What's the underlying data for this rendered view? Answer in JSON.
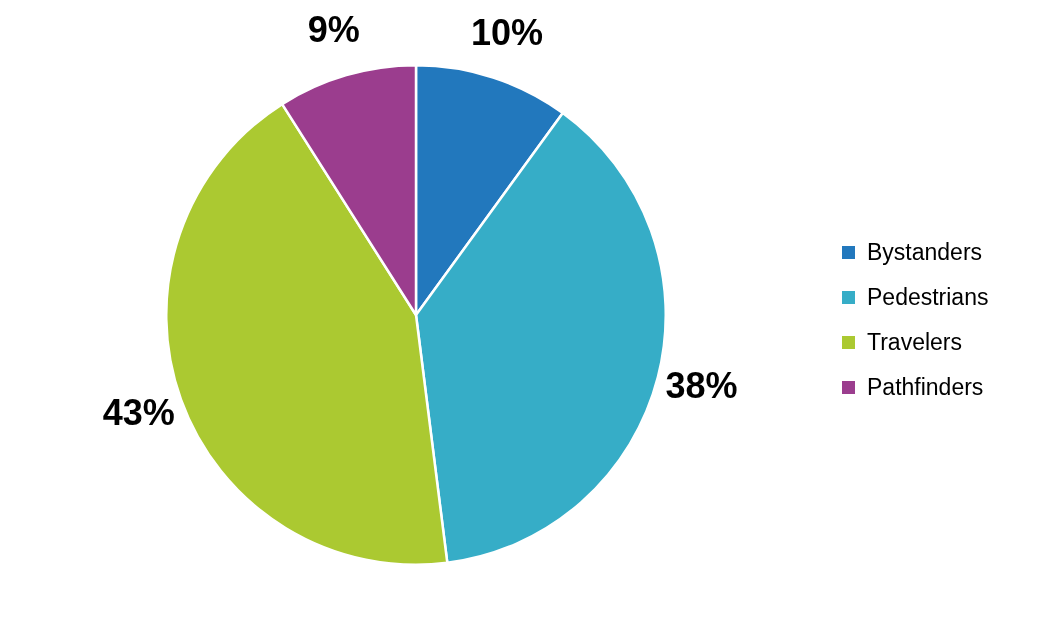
{
  "chart_data": {
    "type": "pie",
    "categories": [
      "Bystanders",
      "Pedestrians",
      "Travelers",
      "Pathfinders"
    ],
    "values": [
      10,
      38,
      43,
      9
    ],
    "value_labels": [
      "10%",
      "38%",
      "43%",
      "9%"
    ],
    "colors": [
      "#2278bd",
      "#36adc7",
      "#abc931",
      "#9b3d8e"
    ],
    "legend": "right"
  }
}
